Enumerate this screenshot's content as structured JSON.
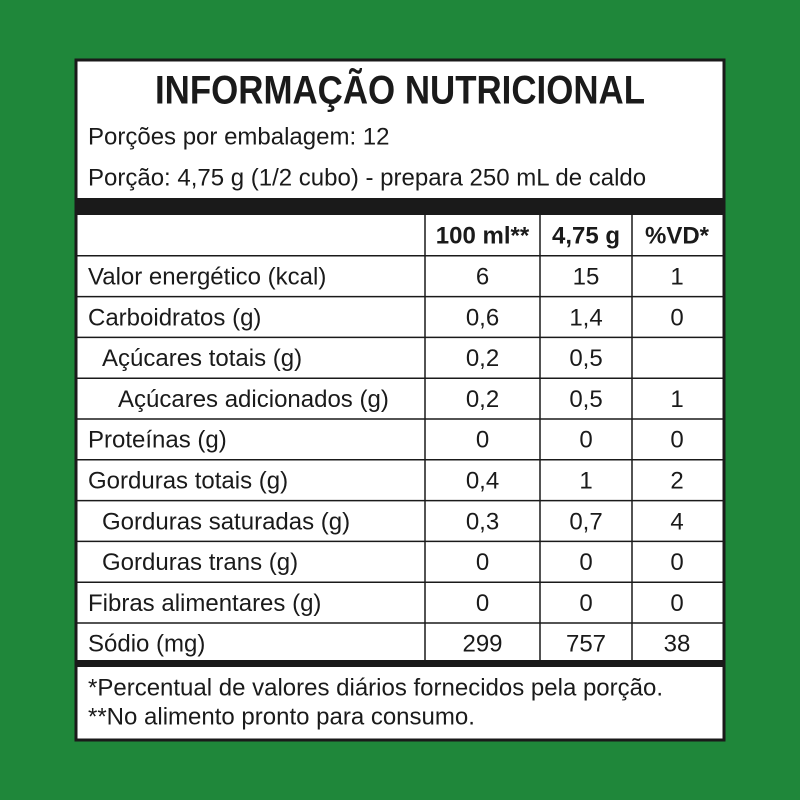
{
  "title": "INFORMAÇÃO NUTRICIONAL",
  "servings_per_package": "Porções por embalagem: 12",
  "serving_size": "Porção: 4,75 g (1/2 cubo) - prepara 250 mL de caldo",
  "table": {
    "header": [
      "100 ml**",
      "4,75 g",
      "%VD*"
    ],
    "rows": [
      [
        "Valor energético (kcal)",
        "6",
        "15",
        "1"
      ],
      [
        "Carboidratos (g)",
        "0,6",
        "1,4",
        "0"
      ],
      [
        "Açúcares totais (g)",
        "0,2",
        "0,5",
        null
      ],
      [
        "Açúcares adicionados (g)",
        "0,2",
        "0,5",
        "1"
      ],
      [
        "Proteínas (g)",
        "0",
        "0",
        "0"
      ],
      [
        "Gorduras totais (g)",
        "0,4",
        "1",
        "2"
      ],
      [
        "Gorduras saturadas (g)",
        "0,3",
        "0,7",
        "4"
      ],
      [
        "Gorduras trans (g)",
        "0",
        "0",
        "0"
      ],
      [
        "Fibras alimentares (g)",
        "0",
        "0",
        "0"
      ],
      [
        "Sódio (mg)",
        "299",
        "757",
        "38"
      ]
    ]
  },
  "footnotes": [
    "*Percentual de valores diários fornecidos pela porção.",
    "**No alimento pronto para consumo."
  ]
}
